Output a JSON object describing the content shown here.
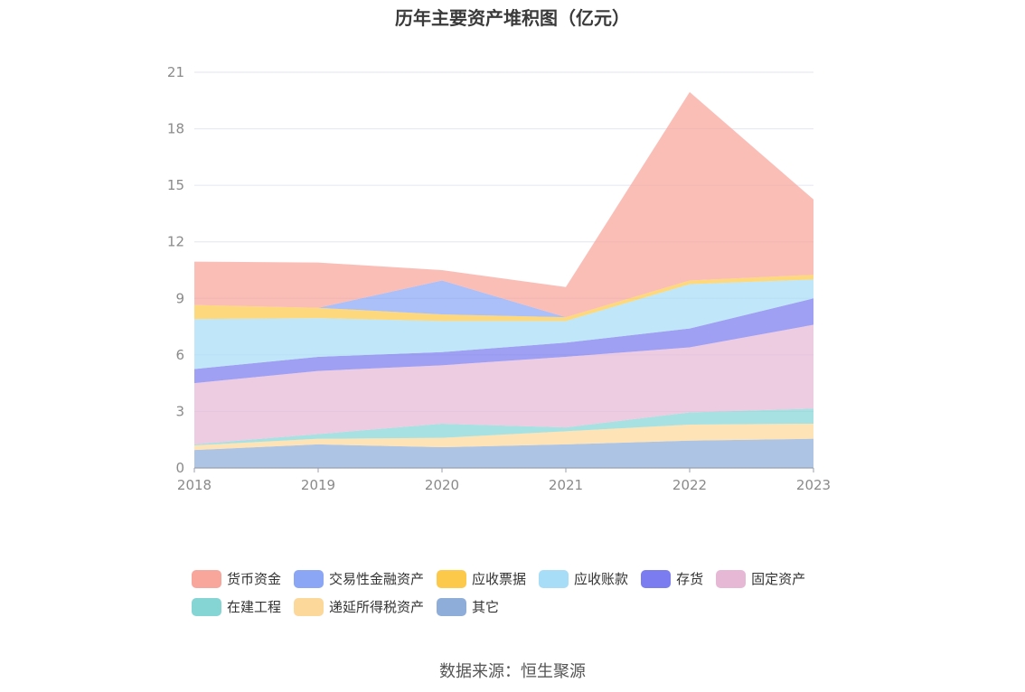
{
  "title": "历年主要资产堆积图（亿元）",
  "source": "数据来源：恒生聚源",
  "chart_data": {
    "type": "area",
    "stacked": true,
    "x": [
      "2018",
      "2019",
      "2020",
      "2021",
      "2022",
      "2023"
    ],
    "ylim": [
      0,
      21
    ],
    "yticks": [
      0,
      3,
      6,
      9,
      12,
      15,
      18,
      21
    ],
    "grid": true,
    "legend_position": "bottom",
    "series": [
      {
        "name": "其它",
        "color": "#8fadd9",
        "values": [
          0.95,
          1.25,
          1.1,
          1.25,
          1.45,
          1.55
        ]
      },
      {
        "name": "递延所得税资产",
        "color": "#fcd89a",
        "values": [
          0.25,
          0.3,
          0.5,
          0.7,
          0.85,
          0.8
        ]
      },
      {
        "name": "在建工程",
        "color": "#85d5d5",
        "values": [
          0.05,
          0.25,
          0.75,
          0.2,
          0.65,
          0.8
        ]
      },
      {
        "name": "固定资产",
        "color": "#e6b8d6",
        "values": [
          3.25,
          3.35,
          3.1,
          3.75,
          3.45,
          4.45
        ]
      },
      {
        "name": "存货",
        "color": "#7a7cf0",
        "values": [
          0.75,
          0.75,
          0.7,
          0.75,
          1.0,
          1.4
        ]
      },
      {
        "name": "应收账款",
        "color": "#a7ddf7",
        "values": [
          2.65,
          2.05,
          1.65,
          1.15,
          2.35,
          1.0
        ]
      },
      {
        "name": "应收票据",
        "color": "#fcc94a",
        "values": [
          0.75,
          0.55,
          0.35,
          0.2,
          0.2,
          0.25
        ]
      },
      {
        "name": "交易性金融资产",
        "color": "#8aa6f5",
        "values": [
          0,
          0,
          1.8,
          0,
          0,
          0
        ]
      },
      {
        "name": "货币资金",
        "color": "#f8a59b",
        "values": [
          2.3,
          2.4,
          0.55,
          1.6,
          10.0,
          4.0
        ]
      }
    ]
  },
  "legend": {
    "items": [
      {
        "label": "货币资金",
        "color": "#f8a59b"
      },
      {
        "label": "交易性金融资产",
        "color": "#8aa6f5"
      },
      {
        "label": "应收票据",
        "color": "#fcc94a"
      },
      {
        "label": "应收账款",
        "color": "#a7ddf7"
      },
      {
        "label": "存货",
        "color": "#7a7cf0"
      },
      {
        "label": "固定资产",
        "color": "#e6b8d6"
      },
      {
        "label": "在建工程",
        "color": "#85d5d5"
      },
      {
        "label": "递延所得税资产",
        "color": "#fcd89a"
      },
      {
        "label": "其它",
        "color": "#8fadd9"
      }
    ]
  }
}
